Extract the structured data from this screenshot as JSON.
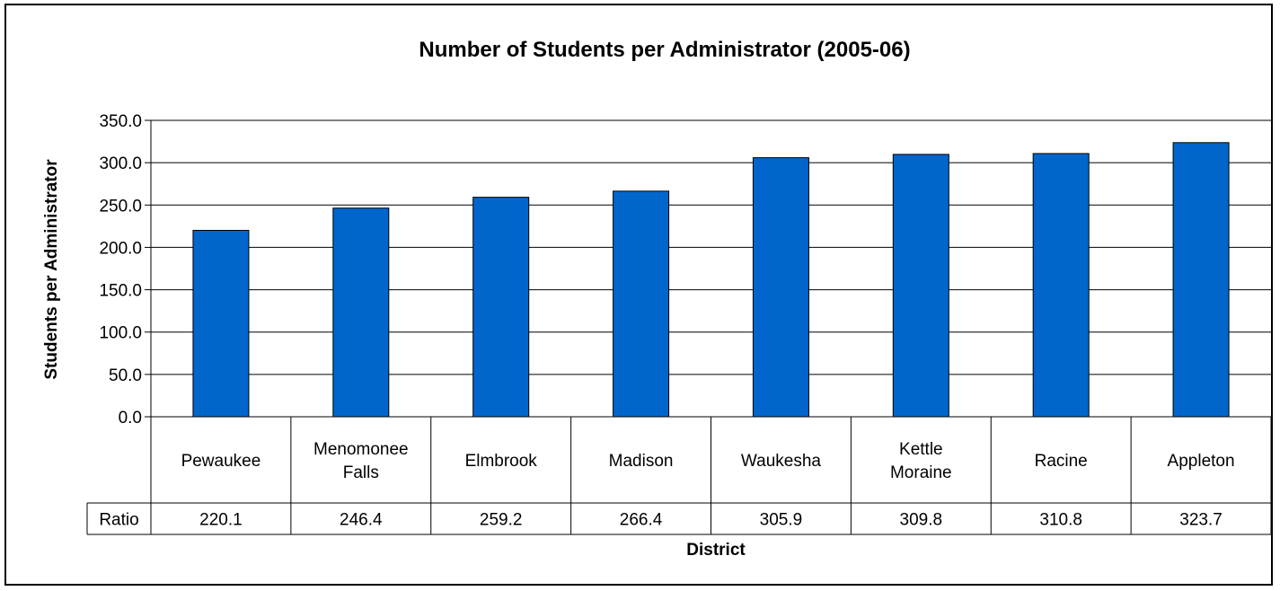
{
  "chart_data": {
    "type": "bar",
    "title": "Number of Students per Administrator (2005-06)",
    "xlabel": "District",
    "ylabel": "Students per Administrator",
    "categories": [
      [
        "Pewaukee"
      ],
      [
        "Menomonee",
        "Falls"
      ],
      [
        "Elmbrook"
      ],
      [
        "Madison"
      ],
      [
        "Waukesha"
      ],
      [
        "Kettle",
        "Moraine"
      ],
      [
        "Racine"
      ],
      [
        "Appleton"
      ]
    ],
    "series": [
      {
        "name": "Ratio",
        "values": [
          220.1,
          246.4,
          259.2,
          266.4,
          305.9,
          309.8,
          310.8,
          323.7
        ]
      }
    ],
    "value_labels": [
      "220.1",
      "246.4",
      "259.2",
      "266.4",
      "305.9",
      "309.8",
      "310.8",
      "323.7"
    ],
    "ylim": [
      0,
      350
    ],
    "yticks": [
      "0.0",
      "50.0",
      "100.0",
      "150.0",
      "200.0",
      "250.0",
      "300.0",
      "350.0"
    ],
    "grid": true,
    "data_table": true,
    "bar_color": "#0066CC"
  }
}
